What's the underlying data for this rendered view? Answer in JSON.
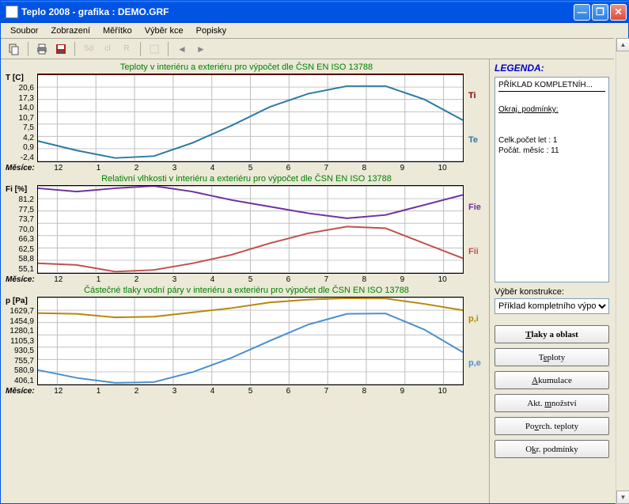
{
  "window": {
    "title": "Teplo 2008 - grafika : DEMO.GRF"
  },
  "menu": [
    "Soubor",
    "Zobrazení",
    "Měřítko",
    "Výběr kce",
    "Popisky"
  ],
  "toolbar": {
    "copy": "copy",
    "print": "print",
    "save": "save",
    "btn_sd": "Sd",
    "btn_cl": "cl",
    "btn_r": "R",
    "prev": "◄",
    "next": "►"
  },
  "charts": [
    {
      "title": "Teploty v interiéru a exteriéru pro výpočet dle ČSN EN ISO 13788",
      "ylabel": "T [C]",
      "yticks": [
        "20,6",
        "17,3",
        "14,0",
        "10,7",
        "7,5",
        "4,2",
        "0,9",
        "-2,4"
      ],
      "xlabel": "Měsíce:",
      "xticks": [
        "12",
        "1",
        "2",
        "3",
        "4",
        "5",
        "6",
        "7",
        "8",
        "9",
        "10"
      ],
      "height": 112,
      "ylim": [
        -2.4,
        20.6
      ],
      "series": [
        {
          "label": "Ti",
          "color": "#8b0000",
          "values": [
            20.6,
            20.6,
            20.6,
            20.6,
            20.6,
            20.6,
            20.6,
            20.6,
            20.6,
            20.6,
            20.6,
            20.6
          ]
        },
        {
          "label": "Te",
          "color": "#2a7aa3",
          "values": [
            3.0,
            0.5,
            -1.5,
            -1.0,
            2.5,
            7.0,
            12.0,
            15.5,
            17.5,
            17.5,
            14.0,
            8.5
          ]
        }
      ]
    },
    {
      "title": "Relativní vlhkosti v interiéru a exteriéru pro výpočet dle ČSN EN ISO 13788",
      "ylabel": "Fi [%]",
      "yticks": [
        "81,2",
        "77,5",
        "73,7",
        "70,0",
        "66,3",
        "62,5",
        "58,8",
        "55,1"
      ],
      "xlabel": "Měsíce:",
      "xticks": [
        "12",
        "1",
        "2",
        "3",
        "4",
        "5",
        "6",
        "7",
        "8",
        "9",
        "10"
      ],
      "height": 112,
      "ylim": [
        55.1,
        81.2
      ],
      "series": [
        {
          "label": "Fie",
          "color": "#7030a0",
          "values": [
            80.5,
            79.5,
            80.5,
            81.2,
            79.5,
            77.0,
            75.0,
            73.0,
            71.5,
            72.5,
            75.5,
            78.5
          ]
        },
        {
          "label": "Fii",
          "color": "#c0504d",
          "values": [
            58.0,
            57.5,
            55.5,
            56.0,
            58.0,
            60.5,
            64.0,
            67.0,
            69.0,
            68.5,
            64.0,
            59.5
          ]
        }
      ]
    },
    {
      "title": "Částečné tlaky vodní páry v interiéru a exteriéru pro výpočet dle ČSN EN ISO 13788",
      "ylabel": "p [Pa]",
      "yticks": [
        "1629,7",
        "1454,9",
        "1280,1",
        "1105,3",
        "930,5",
        "755,7",
        "580,9",
        "406,1"
      ],
      "xlabel": "Měsíce:",
      "xticks": [
        "12",
        "1",
        "2",
        "3",
        "4",
        "5",
        "6",
        "7",
        "8",
        "9",
        "10"
      ],
      "height": 112,
      "ylim": [
        406.1,
        1629.7
      ],
      "series": [
        {
          "label": "p,i",
          "color": "#b8860b",
          "values": [
            1410,
            1400,
            1350,
            1360,
            1420,
            1480,
            1560,
            1600,
            1620,
            1615,
            1540,
            1450
          ]
        },
        {
          "label": "p,e",
          "color": "#4a8fd0",
          "values": [
            610,
            500,
            430,
            440,
            580,
            780,
            1020,
            1250,
            1400,
            1405,
            1180,
            860
          ]
        }
      ]
    }
  ],
  "legend": {
    "title": "LEGENDA:",
    "lines": [
      "PŘÍKLAD KOMPLETNÍH...",
      "",
      "Okraj. podmínky:",
      "",
      "",
      "Celk.počet let :  1",
      "Počát. měsíc :  11"
    ]
  },
  "sidebar": {
    "select_label": "Výběr konstrukce:",
    "select_value": "Příklad kompletního výpo",
    "buttons": [
      {
        "label": "Tlaky a oblast",
        "u": "T",
        "bold": true
      },
      {
        "label": "Teploty",
        "u": "e",
        "bold": false
      },
      {
        "label": "Akumulace",
        "u": "A",
        "bold": false
      },
      {
        "label": "Akt. množství",
        "u": "m",
        "bold": false
      },
      {
        "label": "Povrch. teploty",
        "u": "v",
        "bold": false
      },
      {
        "label": "Okr. podmínky",
        "u": "k",
        "bold": false
      }
    ]
  }
}
